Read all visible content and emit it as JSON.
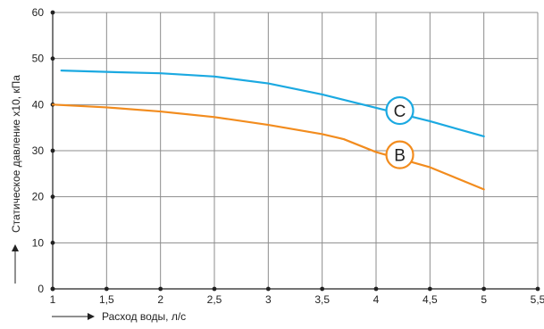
{
  "chart_data": {
    "type": "line",
    "xlabel": "Расход воды, л/с",
    "ylabel": "Статическое давление x10, кПа",
    "xlim": [
      1,
      5.5
    ],
    "ylim": [
      0,
      60
    ],
    "x_ticks": [
      {
        "value": 1,
        "label": "1"
      },
      {
        "value": 1.5,
        "label": "1,5"
      },
      {
        "value": 2,
        "label": "2"
      },
      {
        "value": 2.5,
        "label": "2,5"
      },
      {
        "value": 3,
        "label": "3"
      },
      {
        "value": 3.5,
        "label": "3,5"
      },
      {
        "value": 4,
        "label": "4"
      },
      {
        "value": 4.5,
        "label": "4,5"
      },
      {
        "value": 5,
        "label": "5"
      },
      {
        "value": 5.5,
        "label": "5,5"
      }
    ],
    "y_ticks": [
      {
        "value": 0,
        "label": "0"
      },
      {
        "value": 10,
        "label": "10"
      },
      {
        "value": 20,
        "label": "20"
      },
      {
        "value": 30,
        "label": "30"
      },
      {
        "value": 40,
        "label": "40"
      },
      {
        "value": 50,
        "label": "50"
      },
      {
        "value": 60,
        "label": "60"
      }
    ],
    "grid": true,
    "series": [
      {
        "name": "C",
        "color": "#1ba9e1",
        "x": [
          1.08,
          1.5,
          2,
          2.5,
          3,
          3.5,
          4,
          4.5,
          5
        ],
        "y": [
          47.4,
          47.1,
          46.8,
          46.1,
          44.6,
          42.2,
          39.3,
          36.4,
          33.1
        ],
        "marker": {
          "x": 4.22,
          "y": 38.7
        }
      },
      {
        "name": "B",
        "color": "#f28c1e",
        "x": [
          1,
          1.5,
          2,
          2.5,
          3,
          3.5,
          3.7,
          4,
          4.5,
          5
        ],
        "y": [
          40,
          39.4,
          38.5,
          37.3,
          35.6,
          33.6,
          32.5,
          29.7,
          26.4,
          21.6
        ],
        "marker": {
          "x": 4.22,
          "y": 29.1
        }
      }
    ]
  }
}
